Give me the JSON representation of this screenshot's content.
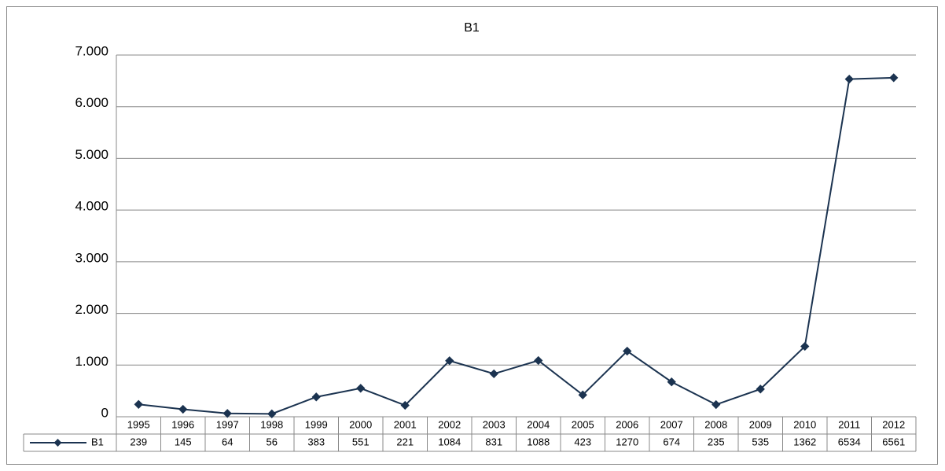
{
  "chart_data": {
    "type": "line",
    "title": "B1",
    "categories": [
      "1995",
      "1996",
      "1997",
      "1998",
      "1999",
      "2000",
      "2001",
      "2002",
      "2003",
      "2004",
      "2005",
      "2006",
      "2007",
      "2008",
      "2009",
      "2010",
      "2011",
      "2012"
    ],
    "series": [
      {
        "name": "B1",
        "color": "#1b3350",
        "values": [
          239,
          145,
          64,
          56,
          383,
          551,
          221,
          1084,
          831,
          1088,
          423,
          1270,
          674,
          235,
          535,
          1362,
          6534,
          6561
        ]
      }
    ],
    "ylim": [
      0,
      7000
    ],
    "yticks": [
      0,
      {
        "value": 1000,
        "label": "1.000"
      },
      {
        "value": 2000,
        "label": "2.000"
      },
      {
        "value": 3000,
        "label": "3.000"
      },
      {
        "value": 4000,
        "label": "4.000"
      },
      {
        "value": 5000,
        "label": "5.000"
      },
      {
        "value": 6000,
        "label": "6.000"
      },
      {
        "value": 7000,
        "label": "7.000"
      }
    ],
    "grid": true,
    "data_table": true
  }
}
